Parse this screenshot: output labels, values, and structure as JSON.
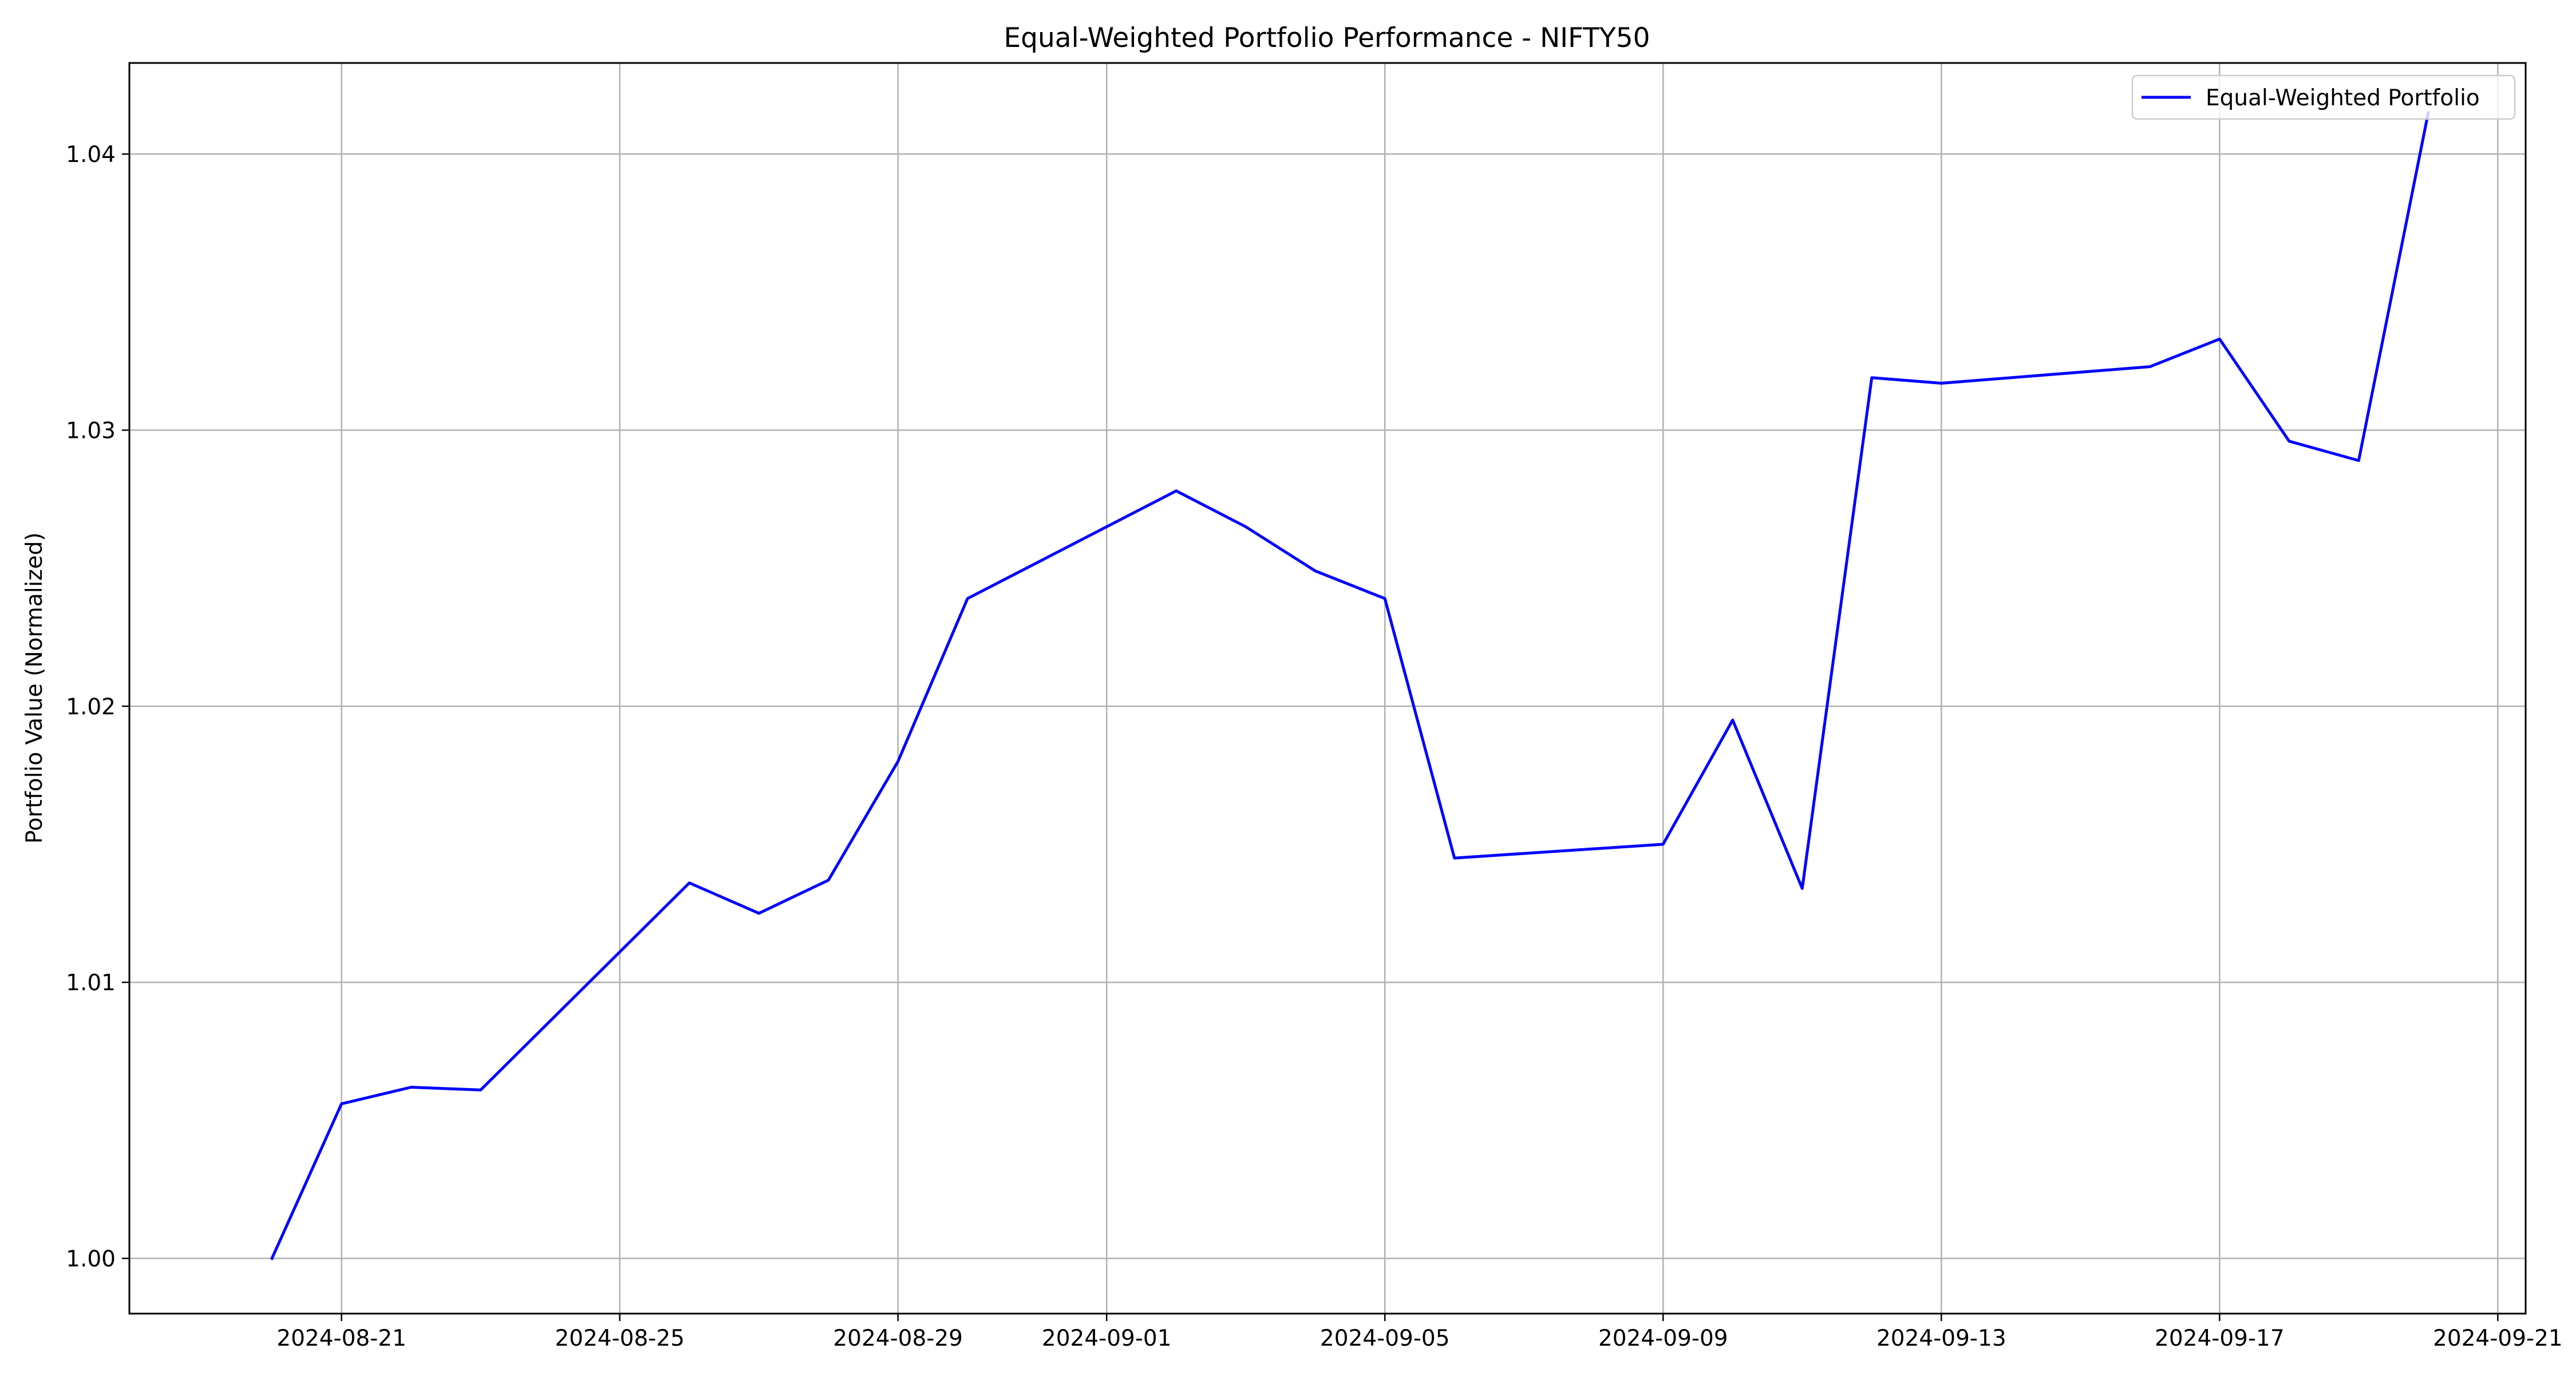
{
  "chart_data": {
    "type": "line",
    "title": "Equal-Weighted Portfolio Performance - NIFTY50",
    "xlabel": "",
    "ylabel": "Portfolio Value (Normalized)",
    "x_type": "date",
    "xlim": [
      "2024-08-18",
      "2024-09-21"
    ],
    "ylim": [
      0.998,
      1.0433
    ],
    "x_ticks": [
      "2024-08-21",
      "2024-08-25",
      "2024-08-29",
      "2024-09-01",
      "2024-09-05",
      "2024-09-09",
      "2024-09-13",
      "2024-09-17",
      "2024-09-21"
    ],
    "y_ticks": [
      1.0,
      1.01,
      1.02,
      1.03,
      1.04
    ],
    "y_tick_labels": [
      "1.00",
      "1.01",
      "1.02",
      "1.03",
      "1.04"
    ],
    "grid": true,
    "legend": {
      "position": "top-right"
    },
    "series": [
      {
        "name": "Equal-Weighted Portfolio",
        "color": "#0000ff",
        "x": [
          "2024-08-20",
          "2024-08-21",
          "2024-08-22",
          "2024-08-23",
          "2024-08-26",
          "2024-08-27",
          "2024-08-28",
          "2024-08-29",
          "2024-08-30",
          "2024-09-02",
          "2024-09-03",
          "2024-09-04",
          "2024-09-05",
          "2024-09-06",
          "2024-09-09",
          "2024-09-10",
          "2024-09-11",
          "2024-09-12",
          "2024-09-13",
          "2024-09-16",
          "2024-09-17",
          "2024-09-18",
          "2024-09-19",
          "2024-09-20"
        ],
        "y": [
          1.0,
          1.0056,
          1.0062,
          1.0061,
          1.0136,
          1.0125,
          1.0137,
          1.018,
          1.0239,
          1.0278,
          1.0265,
          1.0249,
          1.0239,
          1.0145,
          1.015,
          1.0195,
          1.0134,
          1.0319,
          1.0317,
          1.0323,
          1.0333,
          1.0296,
          1.0289,
          1.0415
        ]
      }
    ]
  }
}
